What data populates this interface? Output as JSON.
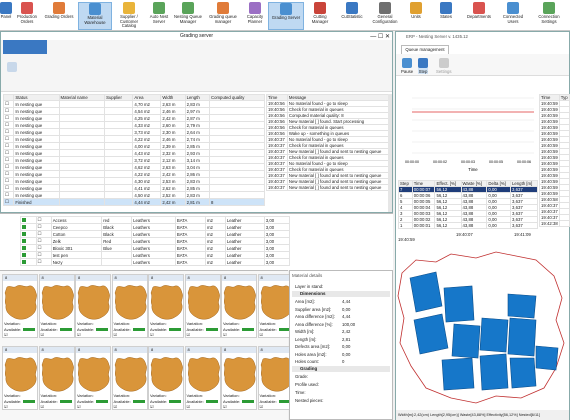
{
  "toolbar": {
    "items": [
      {
        "label": "Panel",
        "color": "#3a78c2"
      },
      {
        "label": "Production\nOrders",
        "color": "#d9534f"
      },
      {
        "label": "Grading Orders",
        "color": "#e07b39"
      },
      {
        "label": "Material\nWarehouse",
        "color": "#4a8fd0",
        "active": true
      },
      {
        "label": "Supplier /\nCustomer\nCatalog",
        "color": "#e9b43a"
      },
      {
        "label": "Auto Nest\nServer",
        "color": "#5aa45a"
      },
      {
        "label": "Nesting Queue\nManager",
        "color": "#5aa45a"
      },
      {
        "label": "Grading queue\nmanager",
        "color": "#e07b39"
      },
      {
        "label": "Capacity\nPlanner",
        "color": "#9b6fc4"
      },
      {
        "label": "Grading Server",
        "color": "#4a8fd0",
        "active": true
      },
      {
        "label": "Cutting\nManager",
        "color": "#c9443a"
      },
      {
        "label": "CutStatistic",
        "color": "#3a78c2"
      },
      {
        "label": "General\nConfiguration",
        "color": "#6f6f6f"
      },
      {
        "label": "Units",
        "color": "#e0a030"
      },
      {
        "label": "States",
        "color": "#3a78c2"
      },
      {
        "label": "Departments",
        "color": "#d9534f"
      },
      {
        "label": "Connected\nUsers",
        "color": "#4a8fd0"
      },
      {
        "label": "Connection\nSettings",
        "color": "#5aa45a"
      }
    ]
  },
  "grading": {
    "title": "Grading server",
    "columns": [
      "Status",
      "Material name",
      "Supplier",
      "Area",
      "Width",
      "Length",
      "Computed quality"
    ],
    "rows": [
      [
        "In nesting que",
        "",
        "",
        "4,70 m2",
        "2,63 m",
        "2,83 m",
        ""
      ],
      [
        "In nesting que",
        "",
        "",
        "4,54 m2",
        "2,46 m",
        "2,97 m",
        ""
      ],
      [
        "In nesting que",
        "",
        "",
        "4,25 m2",
        "2,42 m",
        "2,87 m",
        ""
      ],
      [
        "In nesting que",
        "",
        "",
        "4,33 m2",
        "2,60 m",
        "2,79 m",
        ""
      ],
      [
        "In nesting que",
        "",
        "",
        "3,73 m2",
        "2,30 m",
        "2,64 m",
        ""
      ],
      [
        "In nesting que",
        "",
        "",
        "4,22 m2",
        "2,46 m",
        "2,74 m",
        ""
      ],
      [
        "In nesting que",
        "",
        "",
        "4,00 m2",
        "2,39 m",
        "2,85 m",
        ""
      ],
      [
        "In nesting que",
        "",
        "",
        "4,43 m2",
        "2,32 m",
        "2,93 m",
        ""
      ],
      [
        "In nesting que",
        "",
        "",
        "3,72 m2",
        "2,12 m",
        "3,14 m",
        ""
      ],
      [
        "In nesting que",
        "",
        "",
        "4,62 m2",
        "2,63 m",
        "3,04 m",
        ""
      ],
      [
        "In nesting que",
        "",
        "",
        "4,22 m2",
        "2,42 m",
        "2,86 m",
        ""
      ],
      [
        "In nesting que",
        "",
        "",
        "4,30 m2",
        "2,53 m",
        "2,83 m",
        ""
      ],
      [
        "In nesting que",
        "",
        "",
        "4,41 m2",
        "2,62 m",
        "2,85 m",
        ""
      ],
      [
        "In nesting que",
        "",
        "",
        "4,50 m2",
        "2,52 m",
        "2,83 m",
        ""
      ],
      [
        "Finished",
        "",
        "",
        "4,44 m2",
        "2,42 m",
        "2,81 m",
        "8"
      ]
    ],
    "log_columns": [
      "Time",
      "Message"
    ],
    "log": [
      [
        "19:40:56",
        "No material found - go to sleep"
      ],
      [
        "19:40:56",
        "Check for material in queues"
      ],
      [
        "19:40:56",
        "Computed material quality: 8"
      ],
      [
        "19:40:56",
        "New material [ ] found. Start processing"
      ],
      [
        "19:40:56",
        "Check for material in queues"
      ],
      [
        "19:40:56",
        "Wake up - something in queues"
      ],
      [
        "19:40:37",
        "No material found - go to sleep"
      ],
      [
        "19:40:37",
        "Check for material in queues"
      ],
      [
        "19:40:37",
        "New material [ ] found and sent to nesting queue"
      ],
      [
        "19:40:37",
        "Check for material in queues"
      ],
      [
        "19:40:37",
        "No material found - go to sleep"
      ],
      [
        "19:40:37",
        "Check for material in queues"
      ],
      [
        "19:40:37",
        "New material [ ] found and sent to nesting queue"
      ],
      [
        "19:40:37",
        "New material [ ] found and sent to nesting queue"
      ],
      [
        "19:40:37",
        "New material [ ] found and sent to nesting queue"
      ]
    ]
  },
  "mlist": {
    "rows": [
      [
        "Access",
        "red",
        "Leathers",
        "BATA",
        "m2",
        "Leather",
        "3,00"
      ],
      [
        "Ceepco",
        "Black",
        "Leathers",
        "BATA",
        "m2",
        "Leather",
        "3,00"
      ],
      [
        "Cotton",
        "Black",
        "Leathers",
        "BATA",
        "m2",
        "Leather",
        "3,00"
      ],
      [
        "Zelk",
        "Red",
        "Leathers",
        "BATA",
        "m2",
        "Leather",
        "3,00"
      ],
      [
        "Bloxic 301",
        "Blue",
        "Leathers",
        "BATA",
        "m2",
        "Leather",
        "3,00"
      ],
      [
        "test pen",
        "",
        "Leathers",
        "BATA",
        "m2",
        "Leather",
        "3,00"
      ],
      [
        "Nezy",
        "",
        "Leathers",
        "BATA",
        "m2",
        "Leather",
        "3,00"
      ]
    ]
  },
  "hides": {
    "items": [
      {
        "id": "8",
        "var": "Variation:",
        "avail": "Available:"
      },
      {
        "id": "8",
        "var": "Variation:",
        "avail": "Available:"
      },
      {
        "id": "8",
        "var": "Variation:",
        "avail": "Available:"
      },
      {
        "id": "8",
        "var": "Variation:",
        "avail": "Available:"
      },
      {
        "id": "8",
        "var": "Variation:",
        "avail": "Available:"
      },
      {
        "id": "8",
        "var": "Variation:",
        "avail": "Available:"
      },
      {
        "id": "8",
        "var": "Variation:",
        "avail": "Available:"
      },
      {
        "id": "8",
        "var": "Variation:",
        "avail": "Available:"
      },
      {
        "id": "8",
        "var": "Variation:",
        "avail": "Available:"
      },
      {
        "id": "8",
        "var": "Variation:",
        "avail": "Available:"
      },
      {
        "id": "8",
        "var": "Variation:",
        "avail": "Available:"
      },
      {
        "id": "8",
        "var": "Variation:",
        "avail": "Available:"
      },
      {
        "id": "8",
        "var": "Variation:",
        "avail": "Available:"
      },
      {
        "id": "8",
        "var": "Variation:",
        "avail": "Available:"
      },
      {
        "id": "8",
        "var": "Variation:",
        "avail": "Available:"
      },
      {
        "id": "8",
        "var": "Variation:",
        "avail": "Available:"
      }
    ]
  },
  "details": {
    "title": "Material details",
    "layer": "Layer in stand:",
    "dim_header": "Dimensions",
    "dims": [
      [
        "Area [m2]:",
        "4,44"
      ],
      [
        "Supplier area [m2]:",
        "0,00"
      ],
      [
        "Area difference [m2]:",
        "4,44"
      ],
      [
        "Area difference [%]:",
        "100,00"
      ],
      [
        "Width [m]:",
        "2,42"
      ],
      [
        "Length [m]:",
        "2,81"
      ],
      [
        "Defects area [m2]:",
        "0,00"
      ],
      [
        "Holes area [m2]:",
        "0,00"
      ],
      [
        "Holes count:",
        "0"
      ]
    ],
    "grad_header": "Grading",
    "grad": [
      [
        "Grade:",
        ""
      ],
      [
        "Profile used:",
        ""
      ],
      [
        "Time:",
        ""
      ],
      [
        "Nested pieces:",
        ""
      ]
    ]
  },
  "nest": {
    "title": "ERP - Nesting Server v. 1435.12",
    "tab": "Queue management",
    "buttons": [
      "Pause",
      "Step",
      "Settings"
    ],
    "chart_x": [
      "00:00:00",
      "00:00:02",
      "00:00:03",
      "00:00:05",
      "00:00:06"
    ],
    "chart_xlabel": "Time",
    "steps_columns": [
      "Step",
      "Time",
      "Effect. [%]",
      "Waste [%]",
      "Delta [%]",
      "Length [m]"
    ],
    "steps": [
      [
        "7",
        "00:00:07",
        "56,12",
        "43,88",
        "0,00",
        "3,637"
      ],
      [
        "6",
        "00:00:06",
        "56,12",
        "43,88",
        "0,00",
        "3,637"
      ],
      [
        "5",
        "00:00:05",
        "56,12",
        "43,88",
        "0,00",
        "3,637"
      ],
      [
        "4",
        "00:00:04",
        "56,12",
        "43,88",
        "0,00",
        "3,637"
      ],
      [
        "3",
        "00:00:03",
        "56,12",
        "43,88",
        "0,00",
        "3,637"
      ],
      [
        "2",
        "00:00:02",
        "56,12",
        "43,88",
        "0,00",
        "3,637"
      ],
      [
        "1",
        "00:00:01",
        "56,12",
        "43,88",
        "0,00",
        "3,637"
      ]
    ],
    "log_columns": [
      "Time",
      "Typ"
    ],
    "log": [
      "19:40:59",
      "19:40:59",
      "19:40:59",
      "19:40:59",
      "19:40:59",
      "19:40:59",
      "19:40:59",
      "19:40:59",
      "19:40:59",
      "19:40:59",
      "19:40:59",
      "19:40:59",
      "19:40:59",
      "19:40:59",
      "19:40:59",
      "19:40:59",
      "19:40:58",
      "19:40:37",
      "19:40:37",
      "19:40:37",
      "19:42:38"
    ],
    "times": [
      "19:40:59",
      "19:40:07",
      "19:41:09"
    ],
    "status": "Width[m]:2,42(cm)  Length[2,95(cm)]  Waste[43,88%]  Effectivity[56,12%]  Nested[6/11]"
  }
}
